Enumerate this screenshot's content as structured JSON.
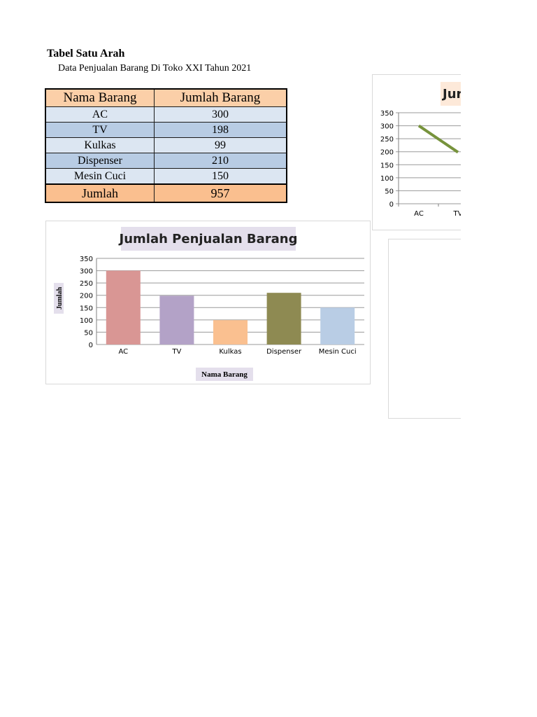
{
  "heading": "Tabel Satu Arah",
  "subheading": "Data Penjualan Barang Di Toko XXI Tahun 2021",
  "table": {
    "headers": [
      "Nama Barang",
      "Jumlah Barang"
    ],
    "rows": [
      {
        "name": "AC",
        "value": "300"
      },
      {
        "name": "TV",
        "value": "198"
      },
      {
        "name": "Kulkas",
        "value": "99"
      },
      {
        "name": "Dispenser",
        "value": "210"
      },
      {
        "name": "Mesin Cuci",
        "value": "150"
      }
    ],
    "total_label": "Jumlah",
    "total_value": "957"
  },
  "chart_data": [
    {
      "type": "bar",
      "title": "Jumlah Penjualan Barang",
      "xlabel": "Nama Barang",
      "ylabel": "Jumlah",
      "categories": [
        "AC",
        "TV",
        "Kulkas",
        "Dispenser",
        "Mesin Cuci"
      ],
      "values": [
        300,
        198,
        99,
        210,
        150
      ],
      "colors": [
        "#d99694",
        "#b3a2c7",
        "#fac090",
        "#8e8a52",
        "#b9cde5"
      ],
      "ylim": [
        0,
        350
      ],
      "yticks": [
        0,
        50,
        100,
        150,
        200,
        250,
        300,
        350
      ],
      "grid": true
    },
    {
      "type": "line",
      "title": "Jur",
      "categories": [
        "AC",
        "TV"
      ],
      "values": [
        300,
        198
      ],
      "color": "#77933c",
      "ylim": [
        0,
        350
      ],
      "yticks": [
        0,
        50,
        100,
        150,
        200,
        250,
        300,
        350
      ],
      "grid": true
    }
  ]
}
